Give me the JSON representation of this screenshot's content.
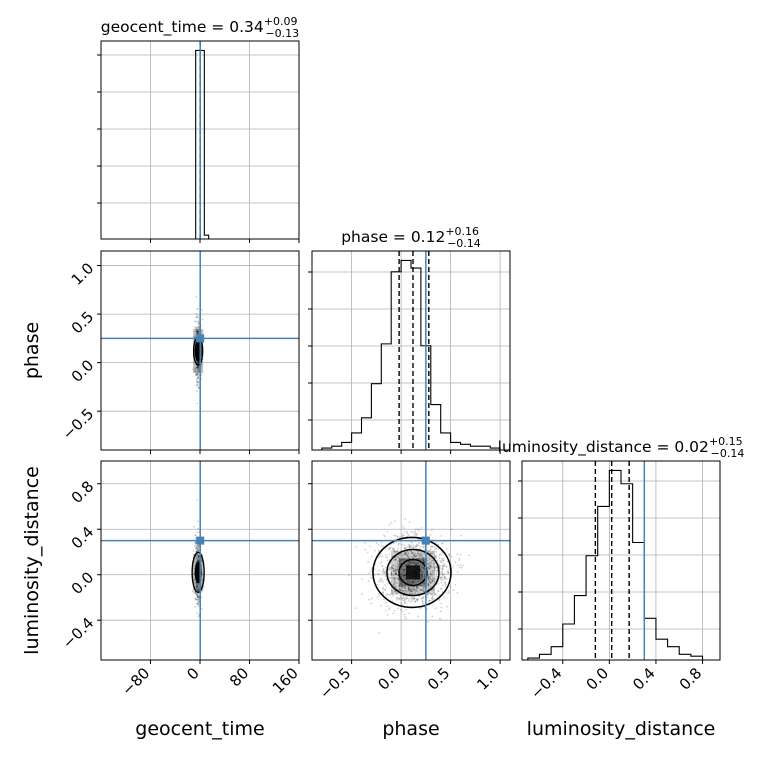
{
  "chart_data": {
    "type": "corner",
    "parameters": [
      "geocent_time",
      "phase",
      "luminosity_distance"
    ],
    "truth_color": "#4682b4",
    "grid": true,
    "panels": {
      "geocent_time": {
        "title_text": "geocent_time = 0.34",
        "title_sup": "+0.09",
        "title_sub": "−0.13",
        "xlim": [
          -160,
          160
        ],
        "xticks": [
          "−80",
          "0",
          "80",
          "160"
        ],
        "xtick_values": [
          -80,
          0,
          80,
          160
        ],
        "xlabel": "geocent_time",
        "truth": 0.34,
        "quantiles": [
          0.21,
          0.34,
          0.43
        ],
        "hist_bins": [
          -7,
          0,
          7,
          14
        ],
        "hist_values": [
          1.0,
          1.0,
          0.02
        ]
      },
      "phase": {
        "title_text": "phase = 0.12",
        "title_sup": "+0.16",
        "title_sub": "−0.14",
        "xlim": [
          -0.9,
          1.1
        ],
        "xticks": [
          "−0.5",
          "0.0",
          "0.5",
          "1.0"
        ],
        "xtick_values": [
          -0.5,
          0.0,
          0.5,
          1.0
        ],
        "ylim": [
          -0.9,
          1.15
        ],
        "yticks": [
          "−0.5",
          "0.0",
          "0.5",
          "1.0"
        ],
        "ytick_values": [
          -0.5,
          0.0,
          0.5,
          1.0
        ],
        "xlabel": "phase",
        "ylabel": "phase",
        "truth": 0.25,
        "quantiles": [
          -0.02,
          0.12,
          0.28
        ],
        "hist_bins": [
          -0.8,
          -0.7,
          -0.6,
          -0.5,
          -0.4,
          -0.3,
          -0.2,
          -0.1,
          0.0,
          0.1,
          0.2,
          0.3,
          0.4,
          0.5,
          0.6,
          0.7,
          0.8,
          0.9,
          1.0
        ],
        "hist_values": [
          0.01,
          0.02,
          0.04,
          0.09,
          0.17,
          0.35,
          0.56,
          0.94,
          1.0,
          0.96,
          0.55,
          0.24,
          0.09,
          0.04,
          0.03,
          0.02,
          0.02,
          0.01
        ]
      },
      "luminosity_distance": {
        "title_text": "luminosity_distance = 0.02",
        "title_sup": "+0.15",
        "title_sub": "−0.14",
        "xlim": [
          -0.75,
          0.95
        ],
        "xticks": [
          "−0.4",
          "0.0",
          "0.4",
          "0.8"
        ],
        "xtick_values": [
          -0.4,
          0.0,
          0.4,
          0.8
        ],
        "ylim": [
          -0.75,
          1.0
        ],
        "yticks": [
          "−0.4",
          "0.0",
          "0.4",
          "0.8"
        ],
        "ytick_values": [
          -0.4,
          0.0,
          0.4,
          0.8
        ],
        "xlabel": "luminosity_distance",
        "ylabel": "luminosity_distance",
        "truth": 0.3,
        "quantiles": [
          -0.12,
          0.02,
          0.17
        ],
        "hist_bins": [
          -0.7,
          -0.6,
          -0.5,
          -0.4,
          -0.3,
          -0.2,
          -0.1,
          0.0,
          0.1,
          0.2,
          0.3,
          0.4,
          0.5,
          0.6,
          0.7,
          0.8
        ],
        "hist_values": [
          0.01,
          0.03,
          0.07,
          0.19,
          0.34,
          0.55,
          0.81,
          1.0,
          0.93,
          0.62,
          0.22,
          0.11,
          0.07,
          0.03,
          0.02
        ]
      }
    }
  }
}
